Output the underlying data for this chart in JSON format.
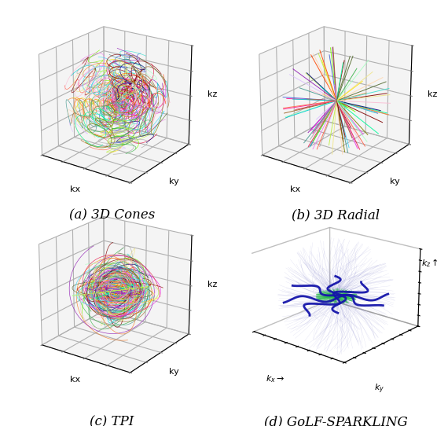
{
  "subtitles": [
    "(a) 3D Cones",
    "(b) 3D Radial",
    "(c) TPI",
    "(d) GoLF-SPARKLING"
  ],
  "subtitle_fontsize": 12,
  "axis_label_fontsize": 8,
  "background_color": "#ffffff",
  "n_cones": 80,
  "n_radial": 90,
  "n_tpi": 70,
  "n_sparkling": 300,
  "seed": 42,
  "colors_cycle": [
    "#e6194b",
    "#3cb44b",
    "#ffe119",
    "#4363d8",
    "#f58231",
    "#911eb4",
    "#42d4f4",
    "#f032e6",
    "#bfef45",
    "#fabed4",
    "#469990",
    "#dcbeff",
    "#9A6324",
    "#800000",
    "#aaffc3",
    "#808000",
    "#ffd8b1",
    "#000075",
    "#a9a9a9",
    "#ff4500",
    "#00ced1",
    "#ff1493",
    "#7cfc00",
    "#8b0000",
    "#00fa9a",
    "#ff6347",
    "#40e0d0",
    "#ee82ee",
    "#f0e68c",
    "#556b2f"
  ],
  "pane_color": [
    0.92,
    0.92,
    0.92,
    1.0
  ],
  "grid_color": "white"
}
